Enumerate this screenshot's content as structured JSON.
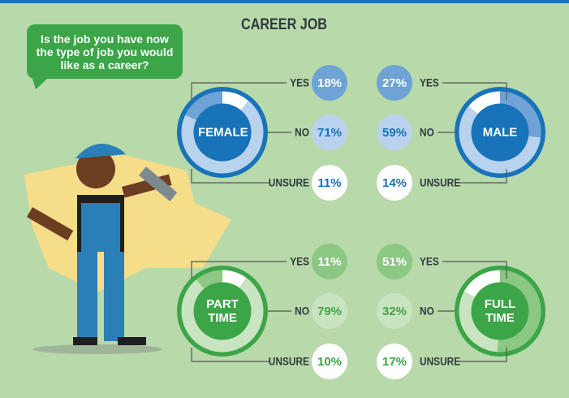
{
  "title": "CAREER JOB",
  "question": "Is the job you have now the type of job you would like as a career?",
  "chart_data": [
    {
      "type": "donut",
      "title": "FEMALE",
      "categories": [
        "YES",
        "NO",
        "UNSURE"
      ],
      "values": [
        18,
        71,
        11
      ],
      "value_labels": [
        "18%",
        "71%",
        "11%"
      ],
      "colors": [
        "#6fa3d6",
        "#b9d3ee",
        "#ffffff"
      ],
      "ring_color": "#1873b9"
    },
    {
      "type": "donut",
      "title": "MALE",
      "categories": [
        "YES",
        "NO",
        "UNSURE"
      ],
      "values": [
        27,
        59,
        14
      ],
      "value_labels": [
        "27%",
        "59%",
        "14%"
      ],
      "colors": [
        "#6fa3d6",
        "#b9d3ee",
        "#ffffff"
      ],
      "ring_color": "#1873b9"
    },
    {
      "type": "donut",
      "title": "PART TIME",
      "categories": [
        "YES",
        "NO",
        "UNSURE"
      ],
      "values": [
        11,
        79,
        10
      ],
      "value_labels": [
        "11%",
        "79%",
        "10%"
      ],
      "colors": [
        "#8cc784",
        "#c9e4c0",
        "#ffffff"
      ],
      "ring_color": "#3ba548"
    },
    {
      "type": "donut",
      "title": "FULL TIME",
      "categories": [
        "YES",
        "NO",
        "UNSURE"
      ],
      "values": [
        51,
        32,
        17
      ],
      "value_labels": [
        "51%",
        "32%",
        "17%"
      ],
      "colors": [
        "#8cc784",
        "#c9e4c0",
        "#ffffff"
      ],
      "ring_color": "#3ba548"
    }
  ]
}
